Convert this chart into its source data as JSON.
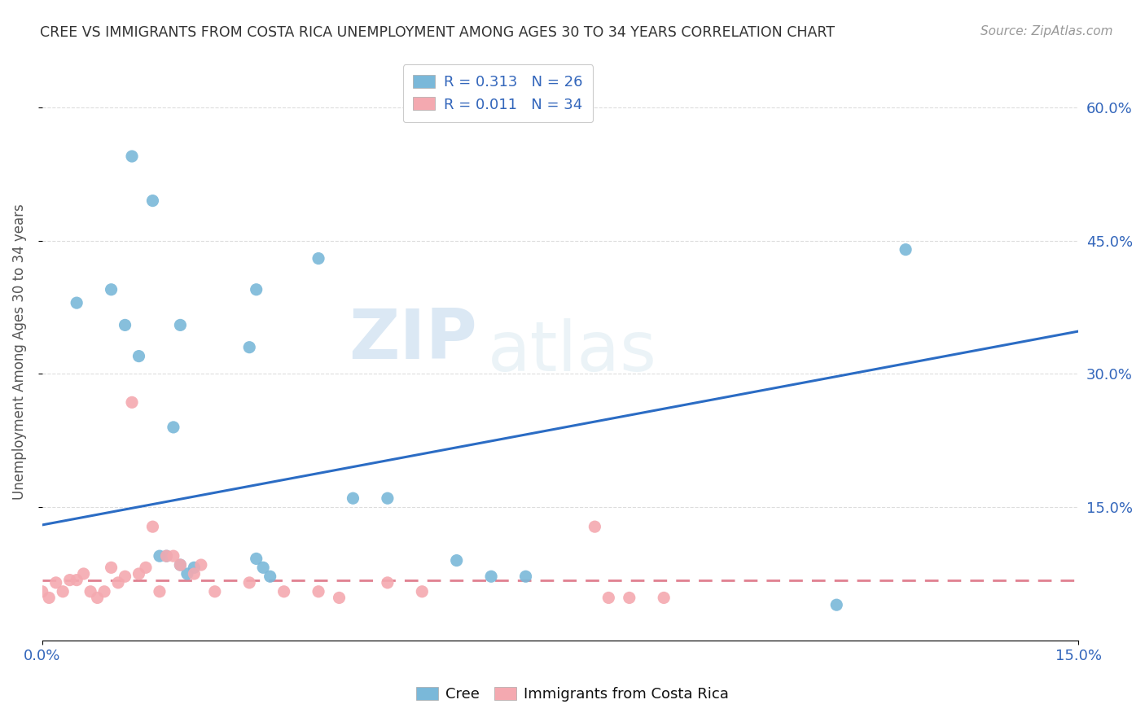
{
  "title": "CREE VS IMMIGRANTS FROM COSTA RICA UNEMPLOYMENT AMONG AGES 30 TO 34 YEARS CORRELATION CHART",
  "source": "Source: ZipAtlas.com",
  "ylabel": "Unemployment Among Ages 30 to 34 years",
  "xlim": [
    0.0,
    0.15
  ],
  "ylim": [
    0.0,
    0.65
  ],
  "legend_label1": "Cree",
  "legend_label2": "Immigrants from Costa Rica",
  "r1": "0.313",
  "n1": "26",
  "r2": "0.011",
  "n2": "34",
  "cree_color": "#7ab8d9",
  "costa_rica_color": "#f4a9b0",
  "trendline1_color": "#2b6cc4",
  "trendline2_color": "#e08090",
  "watermark_zip": "ZIP",
  "watermark_atlas": "atlas",
  "background_color": "#ffffff",
  "grid_color": "#dddddd",
  "cree_points": [
    [
      0.013,
      0.545
    ],
    [
      0.016,
      0.495
    ],
    [
      0.01,
      0.395
    ],
    [
      0.012,
      0.355
    ],
    [
      0.014,
      0.32
    ],
    [
      0.02,
      0.355
    ],
    [
      0.031,
      0.395
    ],
    [
      0.04,
      0.43
    ],
    [
      0.019,
      0.24
    ],
    [
      0.03,
      0.33
    ],
    [
      0.005,
      0.38
    ],
    [
      0.017,
      0.095
    ],
    [
      0.018,
      0.095
    ],
    [
      0.02,
      0.085
    ],
    [
      0.021,
      0.075
    ],
    [
      0.022,
      0.082
    ],
    [
      0.031,
      0.092
    ],
    [
      0.032,
      0.082
    ],
    [
      0.033,
      0.072
    ],
    [
      0.045,
      0.16
    ],
    [
      0.05,
      0.16
    ],
    [
      0.06,
      0.09
    ],
    [
      0.065,
      0.072
    ],
    [
      0.07,
      0.072
    ],
    [
      0.125,
      0.44
    ],
    [
      0.115,
      0.04
    ]
  ],
  "costa_rica_points": [
    [
      0.0,
      0.055
    ],
    [
      0.001,
      0.048
    ],
    [
      0.002,
      0.065
    ],
    [
      0.003,
      0.055
    ],
    [
      0.004,
      0.068
    ],
    [
      0.005,
      0.068
    ],
    [
      0.006,
      0.075
    ],
    [
      0.007,
      0.055
    ],
    [
      0.008,
      0.048
    ],
    [
      0.009,
      0.055
    ],
    [
      0.01,
      0.082
    ],
    [
      0.011,
      0.065
    ],
    [
      0.012,
      0.072
    ],
    [
      0.013,
      0.268
    ],
    [
      0.014,
      0.075
    ],
    [
      0.015,
      0.082
    ],
    [
      0.016,
      0.128
    ],
    [
      0.017,
      0.055
    ],
    [
      0.018,
      0.095
    ],
    [
      0.019,
      0.095
    ],
    [
      0.02,
      0.085
    ],
    [
      0.022,
      0.075
    ],
    [
      0.023,
      0.085
    ],
    [
      0.025,
      0.055
    ],
    [
      0.03,
      0.065
    ],
    [
      0.035,
      0.055
    ],
    [
      0.04,
      0.055
    ],
    [
      0.043,
      0.048
    ],
    [
      0.05,
      0.065
    ],
    [
      0.055,
      0.055
    ],
    [
      0.08,
      0.128
    ],
    [
      0.082,
      0.048
    ],
    [
      0.085,
      0.048
    ],
    [
      0.09,
      0.048
    ]
  ],
  "trendline1_x0": 0.0,
  "trendline1_y0": 0.13,
  "trendline1_x1": 0.15,
  "trendline1_y1": 0.348,
  "trendline2_x0": 0.0,
  "trendline2_y0": 0.068,
  "trendline2_x1": 0.15,
  "trendline2_y1": 0.068
}
